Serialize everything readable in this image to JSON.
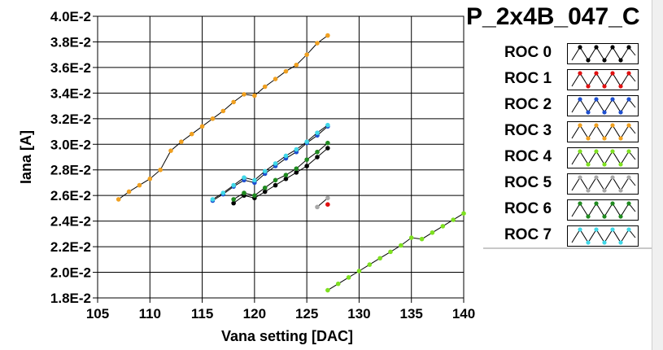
{
  "window": {
    "title": "P_2x4B_047_C"
  },
  "colors": {
    "background": "#ffffff",
    "grid": "#000000",
    "axis": "#000000"
  },
  "chart_data": {
    "type": "line",
    "title": "P_2x4B_047_C",
    "xlabel": "Vana setting [DAC]",
    "ylabel": "Iana [A]",
    "xlim": [
      105,
      140
    ],
    "ylim": [
      0.018,
      0.04
    ],
    "grid": true,
    "legend_placement": "right",
    "x_ticks": [
      "105",
      "110",
      "115",
      "120",
      "125",
      "130",
      "135",
      "140"
    ],
    "x_tick_values": [
      105,
      110,
      115,
      120,
      125,
      130,
      135,
      140
    ],
    "y_ticks": [
      "1.8E-2",
      "2.0E-2",
      "2.2E-2",
      "2.4E-2",
      "2.6E-2",
      "2.8E-2",
      "3.0E-2",
      "3.2E-2",
      "3.4E-2",
      "3.6E-2",
      "3.8E-2",
      "4.0E-2"
    ],
    "y_tick_values": [
      0.018,
      0.02,
      0.022,
      0.024,
      0.026,
      0.028,
      0.03,
      0.032,
      0.034,
      0.036,
      0.038,
      0.04
    ],
    "series": [
      {
        "name": "ROC 0",
        "color": "#000000",
        "x": [
          118,
          119,
          120,
          121,
          122,
          123,
          124,
          125,
          126,
          127
        ],
        "y": [
          0.0254,
          0.026,
          0.0258,
          0.0263,
          0.0268,
          0.0273,
          0.0278,
          0.0283,
          0.029,
          0.0297
        ]
      },
      {
        "name": "ROC 1",
        "color": "#e01010",
        "x": [
          127
        ],
        "y": [
          0.0253
        ]
      },
      {
        "name": "ROC 2",
        "color": "#1e4fcf",
        "x": [
          116,
          117,
          118,
          119,
          120,
          121,
          122,
          123,
          124,
          125,
          126,
          127
        ],
        "y": [
          0.0256,
          0.0261,
          0.0267,
          0.0272,
          0.027,
          0.0277,
          0.0283,
          0.0289,
          0.0294,
          0.0301,
          0.0307,
          0.0314
        ]
      },
      {
        "name": "ROC 3",
        "color": "#f0a020",
        "x": [
          107,
          108,
          109,
          110,
          111,
          112,
          113,
          114,
          115,
          116,
          117,
          118,
          119,
          120,
          121,
          122,
          123,
          124,
          125,
          126,
          127
        ],
        "y": [
          0.0257,
          0.0263,
          0.0268,
          0.0273,
          0.028,
          0.0295,
          0.0302,
          0.0308,
          0.0314,
          0.032,
          0.0326,
          0.0333,
          0.0339,
          0.0338,
          0.0345,
          0.0351,
          0.0357,
          0.0362,
          0.037,
          0.0379,
          0.0385
        ]
      },
      {
        "name": "ROC 4",
        "color": "#7ee020",
        "x": [
          127,
          128,
          129,
          130,
          131,
          132,
          133,
          134,
          135,
          136,
          137,
          138,
          139,
          140
        ],
        "y": [
          0.0186,
          0.0191,
          0.0196,
          0.0201,
          0.0206,
          0.0211,
          0.0216,
          0.0221,
          0.0227,
          0.0226,
          0.0231,
          0.0236,
          0.0241,
          0.0246
        ]
      },
      {
        "name": "ROC 5",
        "color": "#a8a8a8",
        "x": [
          126,
          127
        ],
        "y": [
          0.0251,
          0.0258
        ]
      },
      {
        "name": "ROC 6",
        "color": "#1f8a1f",
        "x": [
          118,
          119,
          120,
          121,
          122,
          123,
          124,
          125,
          126,
          127
        ],
        "y": [
          0.0257,
          0.0262,
          0.026,
          0.0266,
          0.0272,
          0.0276,
          0.0281,
          0.0288,
          0.0294,
          0.0301
        ]
      },
      {
        "name": "ROC 7",
        "color": "#40d8e8",
        "x": [
          116,
          117,
          118,
          119,
          120,
          121,
          122,
          123,
          124,
          125,
          126,
          127
        ],
        "y": [
          0.0257,
          0.0262,
          0.0268,
          0.0274,
          0.0272,
          0.0279,
          0.0285,
          0.0291,
          0.0296,
          0.0302,
          0.0309,
          0.0315
        ]
      }
    ]
  },
  "legend": {
    "items": [
      {
        "label": "ROC 0",
        "color": "#000000"
      },
      {
        "label": "ROC 1",
        "color": "#e01010"
      },
      {
        "label": "ROC 2",
        "color": "#1e4fcf"
      },
      {
        "label": "ROC 3",
        "color": "#f0a020"
      },
      {
        "label": "ROC 4",
        "color": "#7ee020"
      },
      {
        "label": "ROC 5",
        "color": "#a8a8a8"
      },
      {
        "label": "ROC 6",
        "color": "#1f8a1f"
      },
      {
        "label": "ROC 7",
        "color": "#40d8e8"
      }
    ]
  }
}
